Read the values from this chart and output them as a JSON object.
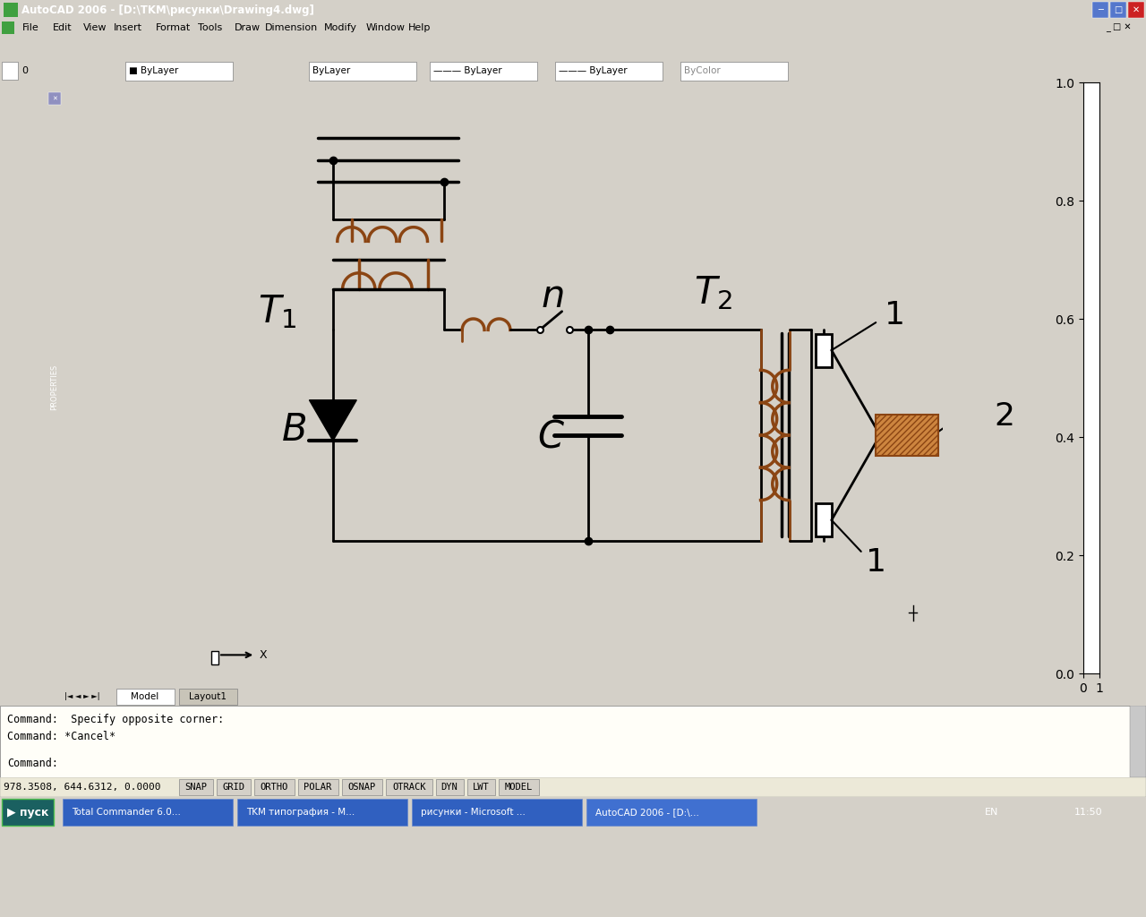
{
  "title": "AutoCAD 2006 - [D:\\TKM\\рисунки\\Drawing4.dwg]",
  "bg_color": "#d4d0c8",
  "canvas_bg": "#ffffff",
  "toolbar_bg": "#ece9d8",
  "line_color": "#000000",
  "coil_color": "#8B4513",
  "hatch_color": "#CD853F",
  "titlebar_color": "#3c6eb4",
  "taskbar_color": "#2050a0",
  "props_color": "#7080b0",
  "cmd_bg": "#fffef8",
  "label_T1": "T",
  "label_T2": "T",
  "label_n": "n",
  "label_C": "C",
  "label_B": "B",
  "label_1": "1",
  "label_2": "2",
  "status_text": "978.3508, 644.6312, 0.0000",
  "cmd_text1": "Command:  Specify opposite corner:",
  "cmd_text2": "Command: *Cancel*",
  "cmd_text3": "Command:",
  "menu_items": [
    "File",
    "Edit",
    "View",
    "Insert",
    "Format",
    "Tools",
    "Draw",
    "Dimension",
    "Modify",
    "Window",
    "Help"
  ],
  "status_buttons": [
    "SNAP",
    "GRID",
    "ORTHO",
    "POLAR",
    "OSNAP",
    "OTRACK",
    "DYN",
    "LWT",
    "MODEL"
  ],
  "taskbar_items": [
    "Total Commander 6.0...",
    "TKM типография - M...",
    "рисунки - Microsoft ...",
    "AutoCAD 2006 - [D:\\..."
  ]
}
